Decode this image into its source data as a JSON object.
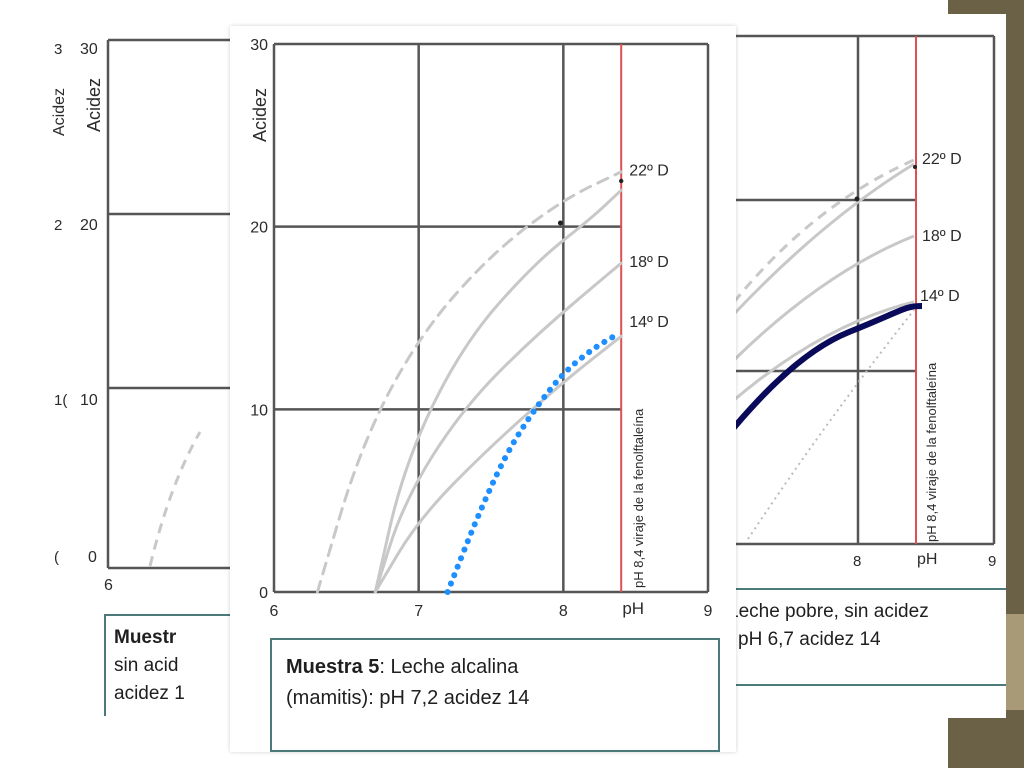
{
  "colors": {
    "grid": "#555555",
    "curve": "#c8c8c8",
    "viraje_line": "#e05050",
    "alkaline_series": "#1e8fff",
    "poor_series": "#0a0a5a",
    "caption_border": "#4a7a7a",
    "slide_bar": "#6b6146"
  },
  "front_chart": {
    "chart_data": {
      "type": "line",
      "xlabel": "pH",
      "ylabel": "Acidez",
      "x_ticks": [
        "6",
        "7",
        "8",
        "9"
      ],
      "y_ticks": [
        "0",
        "10",
        "20",
        "30"
      ],
      "xlim": [
        6,
        9
      ],
      "ylim": [
        0,
        30
      ],
      "grid": true,
      "vertical_line": {
        "x": 8.4,
        "label": "pH 8,4 viraje de la fenolftaleína"
      },
      "curve_labels": [
        "22º D",
        "18º D",
        "14º D"
      ],
      "series": [
        {
          "style": "dashed-gray",
          "x": [
            6.3,
            6.6,
            7.0,
            7.5,
            8.0,
            8.4
          ],
          "y": [
            0,
            8,
            14,
            18.5,
            21.5,
            23
          ]
        },
        {
          "style": "solid-gray",
          "x": [
            6.7,
            6.9,
            7.3,
            7.8,
            8.2,
            8.4
          ],
          "y": [
            0,
            7,
            13.5,
            18,
            20.5,
            22
          ]
        },
        {
          "style": "solid-gray",
          "x": [
            6.7,
            6.9,
            7.3,
            7.8,
            8.4
          ],
          "y": [
            0,
            5,
            10,
            14,
            18
          ]
        },
        {
          "style": "solid-gray",
          "x": [
            6.7,
            7.0,
            7.5,
            8.0,
            8.4
          ],
          "y": [
            0,
            4,
            8,
            11.5,
            14
          ]
        },
        {
          "style": "dotted-blue",
          "x": [
            7.2,
            7.4,
            7.6,
            7.8,
            8.0,
            8.2,
            8.35
          ],
          "y": [
            0,
            4,
            7.5,
            10,
            12,
            13.3,
            14
          ]
        }
      ]
    },
    "caption": {
      "bold": "Muestra 5",
      "rest": ": Leche alcalina",
      "line2": "(mamitis): pH 7,2 acidez 14"
    }
  },
  "left_chart": {
    "y_ticks": [
      "0",
      "10",
      "20",
      "30"
    ],
    "y_ticks_partial": [
      "(",
      "1(",
      "2",
      "3"
    ],
    "x_tick": "6",
    "ylabel": "Acidez",
    "ylabel_partial": "Acidez",
    "caption": {
      "line1": "Muestr",
      "line2": "sin acid",
      "line3": "acidez 1"
    }
  },
  "right_chart": {
    "x_ticks": [
      "8",
      "pH",
      "9"
    ],
    "curve_labels": [
      "22º D",
      "18º D",
      "14º D"
    ],
    "vertical_line_label": "pH 8,4 viraje de la fenolftaleína",
    "caption": {
      "line1": "Leche pobre, sin acidez",
      "line2": "pH 6,7 acidez 14"
    }
  }
}
